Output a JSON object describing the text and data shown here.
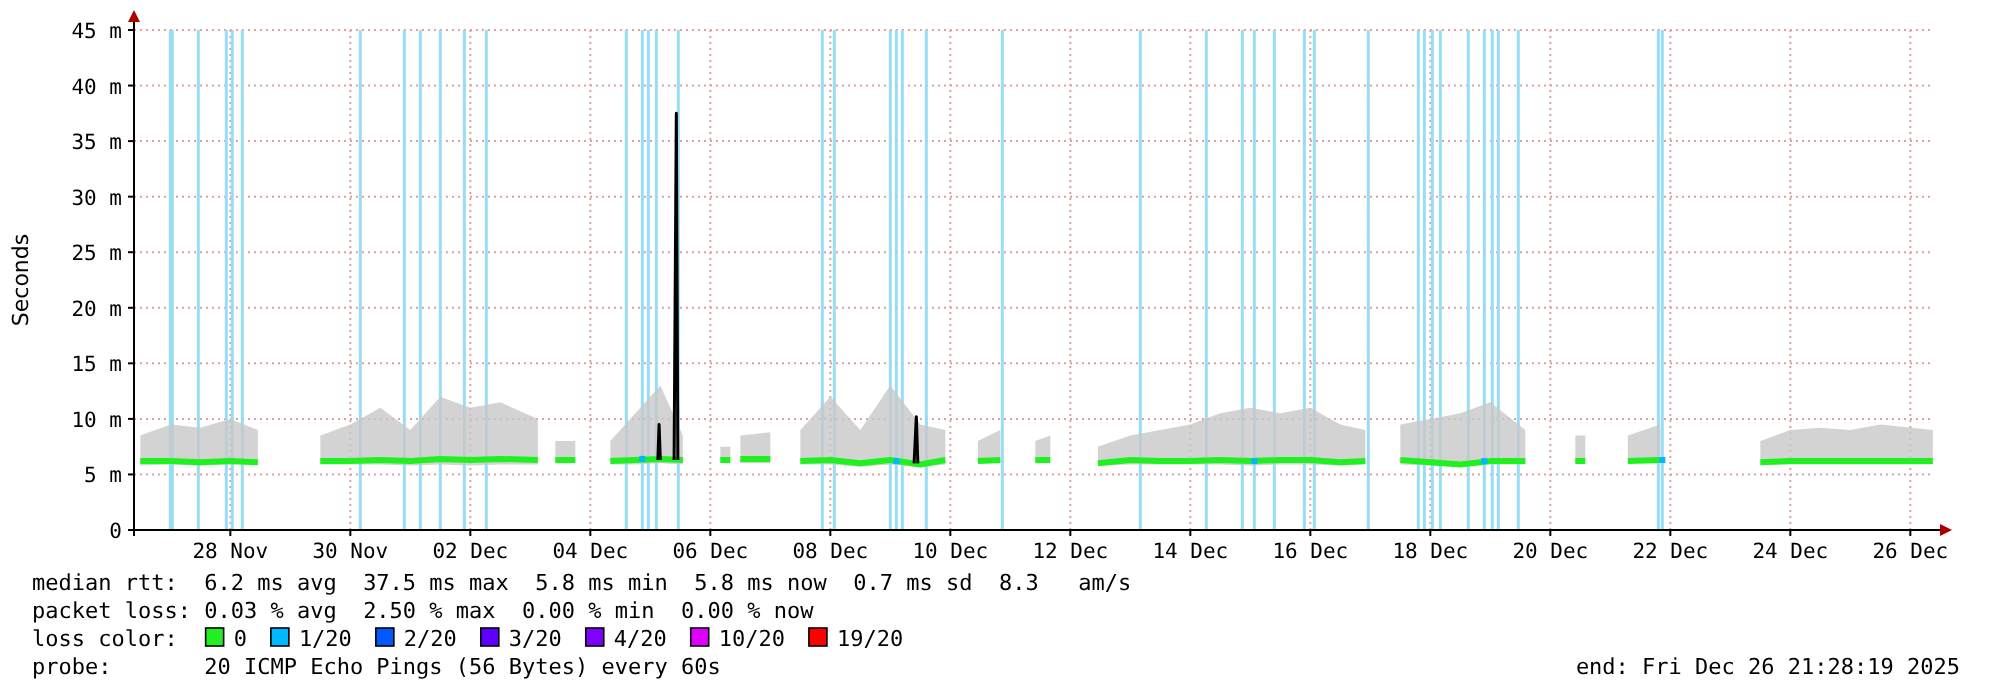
{
  "chart_data": {
    "type": "line",
    "ylabel": "Seconds",
    "legend_title": "loss color:",
    "legend": "bottom",
    "grid": true,
    "marker": "none",
    "line_style": "solid",
    "xlim": [
      "2025-11-26T21:28",
      "2025-12-26T21:28"
    ],
    "xticks": [
      {
        "value": "2025-11-28T12:00",
        "label": "28 Nov"
      },
      {
        "value": "2025-11-30T12:00",
        "label": "30 Nov"
      },
      {
        "value": "2025-12-02T12:00",
        "label": "02 Dec"
      },
      {
        "value": "2025-12-04T12:00",
        "label": "04 Dec"
      },
      {
        "value": "2025-12-06T12:00",
        "label": "06 Dec"
      },
      {
        "value": "2025-12-08T12:00",
        "label": "08 Dec"
      },
      {
        "value": "2025-12-10T12:00",
        "label": "10 Dec"
      },
      {
        "value": "2025-12-12T12:00",
        "label": "12 Dec"
      },
      {
        "value": "2025-12-14T12:00",
        "label": "14 Dec"
      },
      {
        "value": "2025-12-16T12:00",
        "label": "16 Dec"
      },
      {
        "value": "2025-12-18T12:00",
        "label": "18 Dec"
      },
      {
        "value": "2025-12-20T12:00",
        "label": "20 Dec"
      },
      {
        "value": "2025-12-22T12:00",
        "label": "22 Dec"
      },
      {
        "value": "2025-12-24T12:00",
        "label": "24 Dec"
      },
      {
        "value": "2025-12-26T12:00",
        "label": "26 Dec"
      }
    ],
    "ylim": [
      0,
      45
    ],
    "yticks": [
      0,
      {
        "value": 5,
        "label": "5 m"
      },
      {
        "value": 10,
        "label": "10 m"
      },
      {
        "value": 15,
        "label": "15 m"
      },
      {
        "value": 20,
        "label": "20 m"
      },
      {
        "value": 25,
        "label": "25 m"
      },
      {
        "value": 30,
        "label": "30 m"
      },
      {
        "value": 35,
        "label": "35 m"
      },
      {
        "value": 40,
        "label": "40 m"
      },
      {
        "value": 45,
        "label": "45 m"
      }
    ],
    "series": [
      {
        "name": "0",
        "color": "#20f020",
        "x": [
          "2025-11-27T00:00",
          "2025-11-27T12:00",
          "2025-11-28T00:00",
          "2025-11-28T12:00",
          "2025-11-28T23:00",
          "2025-11-29T08:00",
          "2025-11-30T00:00",
          "2025-11-30T12:00",
          "2025-12-01T00:00",
          "2025-12-01T12:00",
          "2025-12-02T00:00",
          "2025-12-02T12:00",
          "2025-12-03T00:00",
          "2025-12-03T15:00",
          "2025-12-03T20:00",
          "2025-12-03T22:00",
          "2025-12-04T06:00",
          "2025-12-04T10:00",
          "2025-12-04T20:00",
          "2025-12-05T06:00",
          "2025-12-05T16:00",
          "2025-12-06T01:00",
          "2025-12-06T08:00",
          "2025-12-06T16:00",
          "2025-12-06T20:00",
          "2025-12-06T22:00",
          "2025-12-07T00:00",
          "2025-12-07T12:00",
          "2025-12-07T18:00",
          "2025-12-08T00:00",
          "2025-12-08T12:00",
          "2025-12-09T00:00",
          "2025-12-09T12:00",
          "2025-12-10T00:00",
          "2025-12-10T10:00",
          "2025-12-10T16:00",
          "2025-12-10T23:00",
          "2025-12-11T08:00",
          "2025-12-11T15:00",
          "2025-12-11T22:00",
          "2025-12-12T04:00",
          "2025-12-12T12:00",
          "2025-12-12T23:00",
          "2025-12-13T12:00",
          "2025-12-14T00:00",
          "2025-12-14T12:00",
          "2025-12-15T00:00",
          "2025-12-15T12:00",
          "2025-12-16T00:00",
          "2025-12-16T12:00",
          "2025-12-17T00:00",
          "2025-12-17T10:00",
          "2025-12-17T18:00",
          "2025-12-18T00:00",
          "2025-12-18T12:00",
          "2025-12-19T00:00",
          "2025-12-19T12:00",
          "2025-12-20T02:00",
          "2025-12-20T12:00",
          "2025-12-20T22:00",
          "2025-12-21T02:00",
          "2025-12-21T10:00",
          "2025-12-21T19:00",
          "2025-12-22T08:00",
          "2025-12-22T16:00",
          "2025-12-24T00:00",
          "2025-12-24T12:00",
          "2025-12-25T00:00",
          "2025-12-25T12:00",
          "2025-12-26T00:00",
          "2025-12-26T21:00"
        ],
        "values": [
          6.2,
          6.2,
          6.1,
          6.2,
          6.1,
          null,
          6.2,
          6.2,
          6.3,
          6.2,
          6.4,
          6.3,
          6.4,
          6.3,
          null,
          6.3,
          6.3,
          null,
          6.2,
          6.3,
          6.4,
          6.3,
          null,
          6.3,
          6.3,
          null,
          6.4,
          6.4,
          null,
          6.2,
          6.3,
          6.0,
          6.3,
          5.9,
          6.3,
          null,
          6.2,
          6.3,
          null,
          6.3,
          6.3,
          null,
          6.0,
          6.3,
          6.2,
          6.2,
          6.3,
          6.2,
          6.3,
          6.3,
          6.1,
          6.2,
          null,
          6.3,
          6.1,
          5.9,
          6.2,
          6.2,
          null,
          6.2,
          6.2,
          null,
          6.2,
          6.3,
          null,
          6.1,
          6.2,
          6.2,
          6.2,
          6.2,
          6.2
        ],
        "lower": [
          5.8,
          5.9,
          5.8,
          5.9,
          5.9,
          null,
          5.9,
          5.9,
          5.9,
          5.8,
          5.9,
          5.8,
          5.9,
          5.9,
          null,
          6.0,
          6.0,
          null,
          5.9,
          5.9,
          6.0,
          5.9,
          null,
          6.0,
          6.0,
          null,
          6.0,
          6.0,
          null,
          5.9,
          5.9,
          5.7,
          5.9,
          5.7,
          5.9,
          null,
          6.0,
          6.0,
          null,
          6.0,
          6.0,
          null,
          5.8,
          5.9,
          5.9,
          5.9,
          5.9,
          5.8,
          5.9,
          5.9,
          5.8,
          5.9,
          null,
          5.9,
          5.8,
          5.7,
          5.9,
          5.9,
          null,
          6.0,
          6.0,
          null,
          6.0,
          6.0,
          null,
          5.9,
          5.9,
          5.9,
          5.9,
          5.9,
          5.9
        ],
        "upper": [
          8.5,
          9.5,
          9.2,
          10,
          9,
          null,
          8.5,
          9.5,
          11,
          9,
          12,
          11,
          11.5,
          10,
          null,
          8,
          8,
          null,
          8,
          10.5,
          13,
          8.5,
          null,
          7.5,
          7.5,
          null,
          8.5,
          8.8,
          null,
          9,
          12,
          9,
          13,
          9.5,
          9,
          null,
          8,
          9,
          null,
          8,
          8.5,
          null,
          7.5,
          8.5,
          9,
          9.5,
          10.5,
          11,
          10.5,
          11,
          9.5,
          9,
          null,
          9.5,
          10,
          10.5,
          11.5,
          9,
          null,
          8.5,
          8.5,
          null,
          8.5,
          9.5,
          null,
          8,
          9,
          9.2,
          9,
          9.5,
          9
        ]
      },
      {
        "color": "#000000",
        "x": [
          "2025-12-05T15:00",
          "2025-12-05T15:30",
          "2025-12-05T16:00",
          "2025-12-05T19:00",
          "2025-12-05T21:30",
          "2025-12-05T22:24",
          "2025-12-05T23:00",
          "2025-12-07T00:00",
          "2025-12-09T21:30",
          "2025-12-09T22:24",
          "2025-12-09T23:00"
        ],
        "values": [
          6.3,
          9.5,
          6.3,
          null,
          6.3,
          37.5,
          6.3,
          null,
          6.0,
          10.2,
          6.0
        ]
      },
      {
        "name": "1/20",
        "type": "scatter",
        "marker": "square",
        "color": "#00b8ff",
        "x": [
          "2025-12-05T08:48",
          "2025-12-09T14:24",
          "2025-12-15T13:36",
          "2025-12-19T09:36",
          "2025-12-22T08:48"
        ],
        "values": [
          6.4,
          6.2,
          6.2,
          6.2,
          6.3
        ]
      },
      {
        "name": "2/20",
        "type": "scatter",
        "color": "#0059ff"
      },
      {
        "name": "3/20",
        "type": "scatter",
        "color": "#5e00ff"
      },
      {
        "name": "4/20",
        "type": "scatter",
        "color": "#7e00ff"
      },
      {
        "name": "10/20",
        "type": "scatter",
        "color": "#dd00ff"
      },
      {
        "name": "19/20",
        "type": "scatter",
        "color": "#ff0000"
      }
    ],
    "ref_lines": [
      {
        "axis": "x",
        "value": "2025-11-27T12:00",
        "color": "#99dcf5"
      },
      {
        "axis": "x",
        "value": "2025-11-27T12:48",
        "color": "#99dcf5"
      },
      {
        "axis": "x",
        "value": "2025-11-27T23:12",
        "color": "#99dcf5"
      },
      {
        "axis": "x",
        "value": "2025-11-28T10:24",
        "color": "#99dcf5"
      },
      {
        "axis": "x",
        "value": "2025-11-28T12:48",
        "color": "#99dcf5"
      },
      {
        "axis": "x",
        "value": "2025-11-28T16:48",
        "color": "#99dcf5"
      },
      {
        "axis": "x",
        "value": "2025-11-30T16:00",
        "color": "#99dcf5"
      },
      {
        "axis": "x",
        "value": "2025-12-01T09:36",
        "color": "#99dcf5"
      },
      {
        "axis": "x",
        "value": "2025-12-01T16:00",
        "color": "#99dcf5"
      },
      {
        "axis": "x",
        "value": "2025-12-02T00:00",
        "color": "#99dcf5"
      },
      {
        "axis": "x",
        "value": "2025-12-02T09:36",
        "color": "#99dcf5"
      },
      {
        "axis": "x",
        "value": "2025-12-02T18:24",
        "color": "#99dcf5"
      },
      {
        "axis": "x",
        "value": "2025-12-05T02:24",
        "color": "#99dcf5"
      },
      {
        "axis": "x",
        "value": "2025-12-05T08:48",
        "color": "#99dcf5"
      },
      {
        "axis": "x",
        "value": "2025-12-05T11:12",
        "color": "#99dcf5"
      },
      {
        "axis": "x",
        "value": "2025-12-05T14:24",
        "color": "#99dcf5"
      },
      {
        "axis": "x",
        "value": "2025-12-05T23:12",
        "color": "#99dcf5"
      },
      {
        "axis": "x",
        "value": "2025-12-08T08:48",
        "color": "#99dcf5"
      },
      {
        "axis": "x",
        "value": "2025-12-08T13:36",
        "color": "#99dcf5"
      },
      {
        "axis": "x",
        "value": "2025-12-09T12:00",
        "color": "#99dcf5"
      },
      {
        "axis": "x",
        "value": "2025-12-09T14:24",
        "color": "#99dcf5"
      },
      {
        "axis": "x",
        "value": "2025-12-09T16:48",
        "color": "#99dcf5"
      },
      {
        "axis": "x",
        "value": "2025-12-10T02:24",
        "color": "#99dcf5"
      },
      {
        "axis": "x",
        "value": "2025-12-11T08:48",
        "color": "#99dcf5"
      },
      {
        "axis": "x",
        "value": "2025-12-13T16:00",
        "color": "#99dcf5"
      },
      {
        "axis": "x",
        "value": "2025-12-14T18:24",
        "color": "#99dcf5"
      },
      {
        "axis": "x",
        "value": "2025-12-15T08:48",
        "color": "#99dcf5"
      },
      {
        "axis": "x",
        "value": "2025-12-15T13:36",
        "color": "#99dcf5"
      },
      {
        "axis": "x",
        "value": "2025-12-15T21:36",
        "color": "#99dcf5"
      },
      {
        "axis": "x",
        "value": "2025-12-16T09:36",
        "color": "#99dcf5"
      },
      {
        "axis": "x",
        "value": "2025-12-16T13:36",
        "color": "#99dcf5"
      },
      {
        "axis": "x",
        "value": "2025-12-17T11:12",
        "color": "#99dcf5"
      },
      {
        "axis": "x",
        "value": "2025-12-18T07:12",
        "color": "#99dcf5"
      },
      {
        "axis": "x",
        "value": "2025-12-18T09:36",
        "color": "#99dcf5"
      },
      {
        "axis": "x",
        "value": "2025-12-18T12:48",
        "color": "#99dcf5"
      },
      {
        "axis": "x",
        "value": "2025-12-18T16:00",
        "color": "#99dcf5"
      },
      {
        "axis": "x",
        "value": "2025-12-19T03:12",
        "color": "#99dcf5"
      },
      {
        "axis": "x",
        "value": "2025-12-19T09:36",
        "color": "#99dcf5"
      },
      {
        "axis": "x",
        "value": "2025-12-19T12:48",
        "color": "#99dcf5"
      },
      {
        "axis": "x",
        "value": "2025-12-19T15:12",
        "color": "#99dcf5"
      },
      {
        "axis": "x",
        "value": "2025-12-19T23:12",
        "color": "#99dcf5"
      },
      {
        "axis": "x",
        "value": "2025-12-22T07:12",
        "color": "#99dcf5"
      },
      {
        "axis": "x",
        "value": "2025-12-22T08:48",
        "color": "#99dcf5"
      }
    ],
    "annotations": [
      "median rtt:  6.2 ms avg  37.5 ms max  5.8 ms min  5.8 ms now  0.7 ms sd  8.3   am/s",
      "packet loss: 0.03 % avg  2.50 % max  0.00 % min  0.00 % now",
      "probe:       20 ICMP Echo Pings (56 Bytes) every 60s",
      "end: Fri Dec 26 21:28:19 2025"
    ]
  }
}
